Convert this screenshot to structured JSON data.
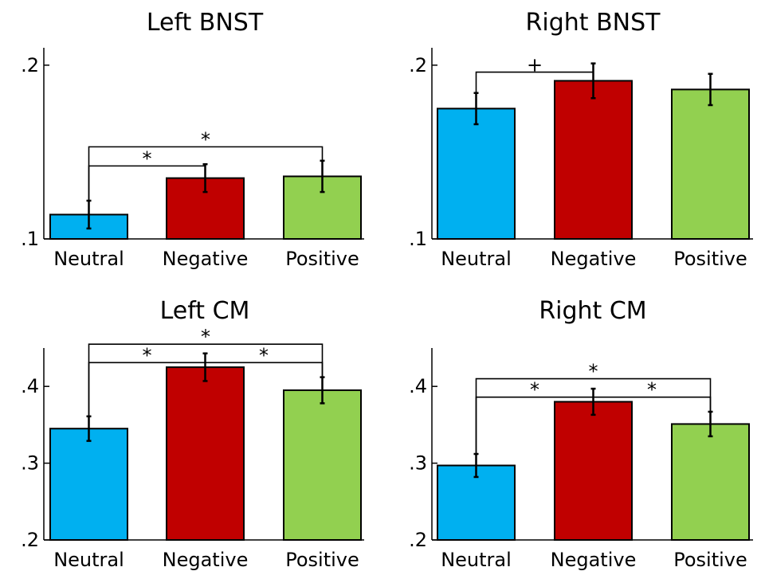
{
  "colors": {
    "Neutral": "#00b0f0",
    "Negative": "#c00000",
    "Positive": "#92d050"
  },
  "chart_data": [
    {
      "type": "bar",
      "title": "Left BNST",
      "categories": [
        "Neutral",
        "Negative",
        "Positive"
      ],
      "values": [
        0.114,
        0.135,
        0.136
      ],
      "errors": [
        0.008,
        0.008,
        0.009
      ],
      "ylim": [
        0.1,
        0.2
      ],
      "yticks": [
        {
          "value": 0.1,
          "label": ".1"
        },
        {
          "value": 0.2,
          "label": ".2"
        }
      ],
      "ymax": 0.21,
      "significance": [
        {
          "from": 0,
          "to": 1,
          "level": 0.142,
          "label": "*"
        },
        {
          "from": 0,
          "to": 2,
          "level": 0.153,
          "label": "*"
        }
      ]
    },
    {
      "type": "bar",
      "title": "Right BNST",
      "categories": [
        "Neutral",
        "Negative",
        "Positive"
      ],
      "values": [
        0.175,
        0.191,
        0.186
      ],
      "errors": [
        0.009,
        0.01,
        0.009
      ],
      "ylim": [
        0.1,
        0.2
      ],
      "yticks": [
        {
          "value": 0.1,
          "label": ".1"
        },
        {
          "value": 0.2,
          "label": ".2"
        }
      ],
      "ymax": 0.21,
      "significance": [
        {
          "from": 0,
          "to": 1,
          "level": 0.196,
          "label": "+"
        }
      ]
    },
    {
      "type": "bar",
      "title": "Left CM",
      "categories": [
        "Neutral",
        "Negative",
        "Positive"
      ],
      "values": [
        0.345,
        0.425,
        0.395
      ],
      "errors": [
        0.016,
        0.018,
        0.017
      ],
      "ylim": [
        0.2,
        0.45
      ],
      "yticks": [
        {
          "value": 0.2,
          "label": ".2"
        },
        {
          "value": 0.3,
          "label": ".3"
        },
        {
          "value": 0.4,
          "label": ".4"
        }
      ],
      "ymax": 0.45,
      "significance": [
        {
          "from": 0,
          "to": 1,
          "level": 0.431,
          "label": "*"
        },
        {
          "from": 1,
          "to": 2,
          "level": 0.431,
          "label": "*"
        },
        {
          "from": 0,
          "to": 2,
          "level": 0.455,
          "label": "*"
        }
      ]
    },
    {
      "type": "bar",
      "title": "Right CM",
      "categories": [
        "Neutral",
        "Negative",
        "Positive"
      ],
      "values": [
        0.297,
        0.38,
        0.351
      ],
      "errors": [
        0.015,
        0.017,
        0.016
      ],
      "ylim": [
        0.2,
        0.45
      ],
      "yticks": [
        {
          "value": 0.2,
          "label": ".2"
        },
        {
          "value": 0.3,
          "label": ".3"
        },
        {
          "value": 0.4,
          "label": ".4"
        }
      ],
      "ymax": 0.45,
      "significance": [
        {
          "from": 0,
          "to": 1,
          "level": 0.386,
          "label": "*"
        },
        {
          "from": 1,
          "to": 2,
          "level": 0.386,
          "label": "*"
        },
        {
          "from": 0,
          "to": 2,
          "level": 0.41,
          "label": "*"
        }
      ]
    }
  ]
}
